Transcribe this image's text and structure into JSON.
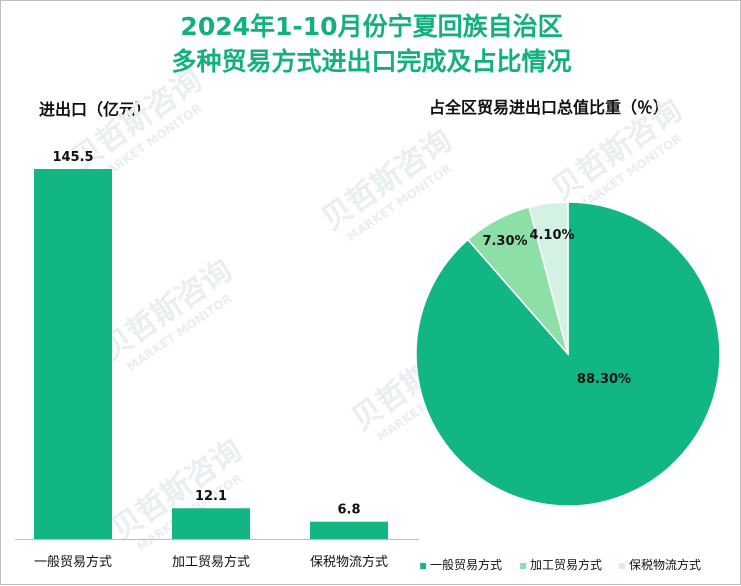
{
  "title_line1": "2024年1-10月份宁夏回族自治区",
  "title_line2": "多种贸易方式进出口完成及占比情况",
  "chart_data": [
    {
      "type": "bar",
      "title": "进出口（亿元）",
      "categories": [
        "一般贸易方式",
        "加工贸易方式",
        "保税物流方式"
      ],
      "values": [
        145.5,
        12.1,
        6.8
      ],
      "value_labels": [
        "145.5",
        "12.1",
        "6.8"
      ],
      "ylim": [
        0,
        145.5
      ],
      "color": "#12b584"
    },
    {
      "type": "pie",
      "title": "占全区贸易进出口总值比重（％）",
      "categories": [
        "一般贸易方式",
        "加工贸易方式",
        "保税物流方式"
      ],
      "values": [
        88.3,
        7.3,
        4.1
      ],
      "value_labels": [
        "88.30%",
        "7.30%",
        "4.10%"
      ],
      "colors": [
        "#12b584",
        "#8ddfa8",
        "#d4f2e3"
      ],
      "legend_marker": "▪",
      "legend": [
        "一般贸易方式",
        "加工贸易方式",
        "保税物流方式"
      ],
      "legend_position": "bottom-right"
    }
  ],
  "watermark": {
    "brand": "贝哲斯咨询",
    "sub": "MARKET MONITOR"
  }
}
